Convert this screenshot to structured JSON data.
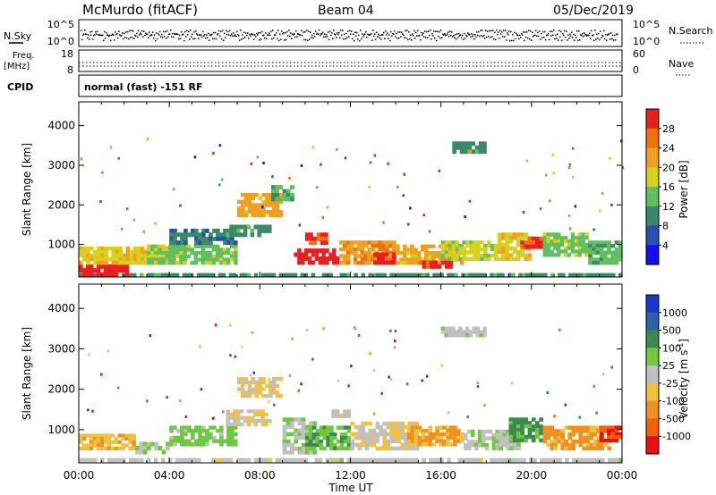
{
  "header": {
    "station": "McMurdo (fitACF)",
    "beam": "Beam 04",
    "date": "05/Dec/2019"
  },
  "noise_panel": {
    "left_label": "N.Sky",
    "right_label": "N.Search",
    "left_ticks": [
      "10^5",
      "10^0"
    ],
    "right_ticks": [
      "10^5",
      "10^0"
    ]
  },
  "freq_panel": {
    "left_label_1": "Freq.",
    "left_label_2": "[MHz]",
    "right_label": "Nave",
    "left_ticks": [
      "18",
      "8"
    ],
    "right_ticks": [
      "60",
      "0"
    ]
  },
  "cpid": {
    "label": "CPID",
    "mode": "normal (fast) -151 RF"
  },
  "x_axis": {
    "title": "Time UT",
    "ticks": [
      "00:00",
      "04:00",
      "08:00",
      "12:00",
      "16:00",
      "20:00",
      "00:00"
    ]
  },
  "y_axis": {
    "title": "Slant Range [km]",
    "ticks": [
      "1000",
      "2000",
      "3000",
      "4000"
    ]
  },
  "power_colorbar": {
    "title": "Power [dB]",
    "labels": [
      "4",
      "8",
      "12",
      "16",
      "20",
      "24",
      "28"
    ],
    "colors": [
      "#1010f0",
      "#2850b0",
      "#3a8a6a",
      "#60c060",
      "#d8d020",
      "#f0a020",
      "#f07010",
      "#e82020"
    ]
  },
  "velocity_colorbar": {
    "title": "Velocity [m s",
    "superscript": "-1",
    "title_end": "]",
    "labels": [
      "1000",
      "500",
      "100",
      "25",
      "-25",
      "-100",
      "-500",
      "-1000"
    ],
    "colors": [
      "#1838c8",
      "#2c60a8",
      "#3c8a50",
      "#70c840",
      "#c0c0c0",
      "#f0c040",
      "#f09020",
      "#f06010",
      "#e81010"
    ]
  },
  "chart_data": [
    {
      "type": "heatmap",
      "name": "power",
      "xlabel": "Time UT",
      "ylabel": "Slant Range [km]",
      "xlim": [
        0,
        24
      ],
      "ylim": [
        180,
        4600
      ],
      "colorbar_label": "Power [dB]",
      "colorbar_range": [
        0,
        30
      ],
      "echo_regions": [
        {
          "t0": 0.0,
          "t1": 24.0,
          "r0": 200,
          "r1": 280,
          "value": 10
        },
        {
          "t0": 0.0,
          "t1": 2.2,
          "r0": 200,
          "r1": 500,
          "value": 28
        },
        {
          "t0": 0.0,
          "t1": 4.0,
          "r0": 500,
          "r1": 950,
          "value": 18
        },
        {
          "t0": 3.0,
          "t1": 7.0,
          "r0": 500,
          "r1": 1000,
          "value": 14
        },
        {
          "t0": 4.0,
          "t1": 7.0,
          "r0": 1000,
          "r1": 1400,
          "value": 8
        },
        {
          "t0": 6.5,
          "t1": 8.5,
          "r0": 1200,
          "r1": 1500,
          "value": 10
        },
        {
          "t0": 7.0,
          "t1": 9.0,
          "r0": 1700,
          "r1": 2300,
          "value": 20
        },
        {
          "t0": 8.5,
          "t1": 9.5,
          "r0": 2100,
          "r1": 2500,
          "value": 12
        },
        {
          "t0": 9.5,
          "t1": 11.5,
          "r0": 500,
          "r1": 900,
          "value": 28
        },
        {
          "t0": 10.0,
          "t1": 11.0,
          "r0": 1000,
          "r1": 1300,
          "value": 26
        },
        {
          "t0": 11.5,
          "t1": 14.0,
          "r0": 500,
          "r1": 1100,
          "value": 22
        },
        {
          "t0": 13.0,
          "t1": 14.0,
          "r0": 500,
          "r1": 800,
          "value": 28
        },
        {
          "t0": 14.0,
          "t1": 17.0,
          "r0": 500,
          "r1": 1000,
          "value": 20
        },
        {
          "t0": 15.0,
          "t1": 16.5,
          "r0": 400,
          "r1": 600,
          "value": 27
        },
        {
          "t0": 16.0,
          "t1": 18.5,
          "r0": 600,
          "r1": 1100,
          "value": 16
        },
        {
          "t0": 16.5,
          "t1": 18.0,
          "r0": 3300,
          "r1": 3600,
          "value": 10
        },
        {
          "t0": 18.5,
          "t1": 20.0,
          "r0": 600,
          "r1": 1300,
          "value": 18
        },
        {
          "t0": 19.5,
          "t1": 20.5,
          "r0": 900,
          "r1": 1200,
          "value": 26
        },
        {
          "t0": 20.5,
          "t1": 22.5,
          "r0": 700,
          "r1": 1300,
          "value": 14
        },
        {
          "t0": 22.5,
          "t1": 24.0,
          "r0": 500,
          "r1": 1100,
          "value": 12
        }
      ]
    },
    {
      "type": "heatmap",
      "name": "velocity",
      "xlabel": "Time UT",
      "ylabel": "Slant Range [km]",
      "xlim": [
        0,
        24
      ],
      "ylim": [
        180,
        4600
      ],
      "colorbar_label": "Velocity [m s-1]",
      "colorbar_range": [
        -1000,
        1000
      ],
      "echo_regions": [
        {
          "t0": 0.0,
          "t1": 24.0,
          "r0": 200,
          "r1": 300,
          "value": 0
        },
        {
          "t0": 0.0,
          "t1": 2.5,
          "r0": 500,
          "r1": 900,
          "value": -300
        },
        {
          "t0": 2.5,
          "t1": 4.0,
          "r0": 400,
          "r1": 700,
          "value": 80
        },
        {
          "t0": 4.0,
          "t1": 7.0,
          "r0": 600,
          "r1": 1100,
          "value": 200
        },
        {
          "t0": 6.5,
          "t1": 8.5,
          "r0": 1100,
          "r1": 1500,
          "value": -80
        },
        {
          "t0": 7.0,
          "t1": 9.0,
          "r0": 1800,
          "r1": 2300,
          "value": -150
        },
        {
          "t0": 9.0,
          "t1": 10.5,
          "r0": 400,
          "r1": 1300,
          "value": 60
        },
        {
          "t0": 10.0,
          "t1": 12.0,
          "r0": 500,
          "r1": 1100,
          "value": 300
        },
        {
          "t0": 11.0,
          "t1": 12.0,
          "r0": 1300,
          "r1": 1500,
          "value": 0
        },
        {
          "t0": 12.0,
          "t1": 15.0,
          "r0": 500,
          "r1": 1200,
          "value": -90
        },
        {
          "t0": 14.5,
          "t1": 17.0,
          "r0": 600,
          "r1": 1100,
          "value": -350
        },
        {
          "t0": 16.0,
          "t1": 18.0,
          "r0": 3300,
          "r1": 3550,
          "value": 40
        },
        {
          "t0": 17.0,
          "t1": 19.5,
          "r0": 500,
          "r1": 1000,
          "value": 60
        },
        {
          "t0": 19.0,
          "t1": 20.5,
          "r0": 700,
          "r1": 1300,
          "value": 400
        },
        {
          "t0": 20.5,
          "t1": 23.5,
          "r0": 500,
          "r1": 1100,
          "value": -400
        },
        {
          "t0": 23.0,
          "t1": 24.0,
          "r0": 700,
          "r1": 1100,
          "value": -800
        }
      ]
    }
  ]
}
